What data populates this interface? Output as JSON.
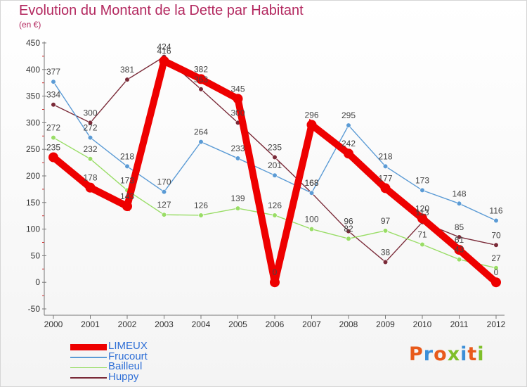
{
  "header": {
    "title": "Evolution du Montant de la Dette par Habitant",
    "subtitle": "(en €)"
  },
  "logo": {
    "text": "Proxiti",
    "letter_colors": [
      "#e85a1b",
      "#3c8fd8",
      "#e85a1b",
      "#7fbf2a",
      "#3c8fd8",
      "#e85a1b",
      "#7fbf2a"
    ]
  },
  "chart_data": {
    "type": "line",
    "title": "Evolution du Montant de la Dette par Habitant",
    "subtitle": "(en €)",
    "x": [
      "2000",
      "2001",
      "2002",
      "2003",
      "2004",
      "2005",
      "2006",
      "2007",
      "2008",
      "2009",
      "2010",
      "2011",
      "2012"
    ],
    "y_ticks": [
      "450",
      "400",
      "350",
      "300",
      "250",
      "200",
      "150",
      "100",
      "50",
      "0",
      "-50"
    ],
    "ylim": [
      -50,
      450
    ],
    "grid": false,
    "legend_position": "bottom-left",
    "series": [
      {
        "name": "LIMEUX",
        "color": "#ee0000",
        "values": [
          235,
          178,
          143,
          416,
          382,
          345,
          0,
          296,
          242,
          177,
          120,
          61,
          0
        ],
        "labels": [
          "235",
          "178",
          "143",
          "416",
          "382",
          "345",
          "0",
          "296",
          "242",
          "177",
          "120",
          "61",
          "0"
        ]
      },
      {
        "name": "Frucourt",
        "color": "#5b9bd5",
        "values": [
          377,
          272,
          218,
          170,
          264,
          233,
          201,
          168,
          295,
          218,
          173,
          148,
          116
        ],
        "labels": [
          "377",
          "272",
          "218",
          "170",
          "264",
          "233",
          "201",
          "168",
          "295",
          "218",
          "173",
          "148",
          "116"
        ]
      },
      {
        "name": "Bailleul",
        "color": "#99dd66",
        "values": [
          272,
          232,
          173,
          127,
          126,
          139,
          126,
          100,
          82,
          97,
          71,
          43,
          27
        ],
        "labels": [
          "272",
          "232",
          "173",
          "127",
          "126",
          "139",
          "126",
          "100",
          "82",
          "97",
          "71",
          "43",
          "27"
        ]
      },
      {
        "name": "Huppy",
        "color": "#7a2a38",
        "values": [
          334,
          300,
          381,
          424,
          363,
          300,
          235,
          168,
          96,
          38,
          113,
          85,
          70
        ],
        "labels": [
          "334",
          "300",
          "381",
          "424",
          "363",
          "300",
          "235",
          "168",
          "96",
          "38",
          "113",
          "85",
          "70"
        ]
      }
    ]
  }
}
